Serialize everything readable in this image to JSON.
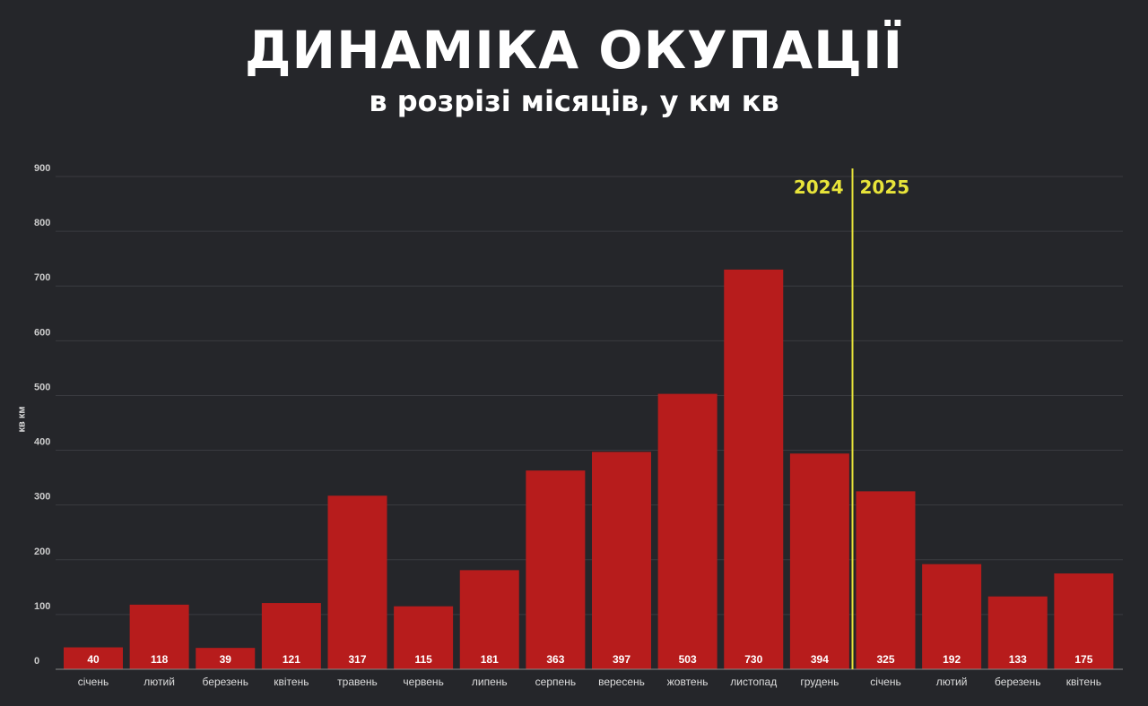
{
  "chart_data": {
    "type": "bar",
    "title": "ДИНАМІКА ОКУПАЦІЇ",
    "subtitle": "в розрізі місяців, у км кв",
    "ylabel": "кв км",
    "xlabel": "",
    "ylim": [
      0,
      900
    ],
    "yticks": [
      0,
      100,
      200,
      300,
      400,
      500,
      600,
      700,
      800,
      900
    ],
    "grid": true,
    "categories": [
      "січень",
      "лютий",
      "березень",
      "квітень",
      "травень",
      "червень",
      "липень",
      "серпень",
      "вересень",
      "жовтень",
      "листопад",
      "грудень",
      "січень",
      "лютий",
      "березень",
      "квітень"
    ],
    "values": [
      40,
      118,
      39,
      121,
      317,
      115,
      181,
      363,
      397,
      503,
      730,
      394,
      325,
      192,
      133,
      175
    ],
    "divider": {
      "left_label": "2024",
      "right_label": "2025",
      "after_category_index": 11
    },
    "colors": {
      "bar": "#b71c1c",
      "background": "#25262a",
      "divider": "#e8e43a",
      "grid": "#3a3b40"
    }
  }
}
